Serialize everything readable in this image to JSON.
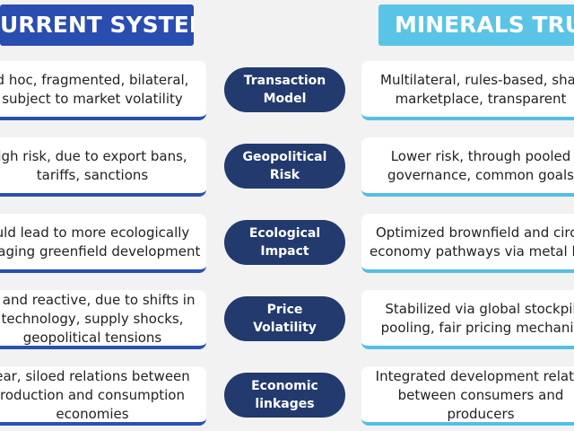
{
  "header": {
    "left": "URRENT SYSTEM",
    "right": "MINERALS TRUST"
  },
  "rows": [
    {
      "left": [
        "d hoc, fragmented, bilateral,",
        "subject to market volatility"
      ],
      "label": [
        "Transaction",
        "Model"
      ],
      "right": [
        "Multilateral, rules-based, shar",
        "marketplace, transparent"
      ]
    },
    {
      "left": [
        "igh risk, due to export bans,",
        "tariffs, sanctions"
      ],
      "label": [
        "Geopolitical",
        "Risk"
      ],
      "right": [
        "Lower risk, through pooled",
        "governance, common goals"
      ]
    },
    {
      "left": [
        "uld lead to more ecologically",
        "maging greenfield development"
      ],
      "label": [
        "Ecological",
        "Impact"
      ],
      "right": [
        "Optimized brownfield and circu",
        "economy pathways via metal lea"
      ]
    },
    {
      "left": [
        "n and reactive, due to shifts in",
        "technology, supply shocks,",
        "geopolitical tensions"
      ],
      "label": [
        "Price",
        "Volatility"
      ],
      "right": [
        "Stabilized via global stockpil",
        "pooling, fair pricing mechanis"
      ]
    },
    {
      "left": [
        "ear, siloed relations between",
        "roduction and consumption",
        "economies"
      ],
      "label": [
        "Economic",
        "linkages"
      ],
      "right": [
        "Integrated development relatio",
        "between consumers and",
        "producers"
      ]
    }
  ]
}
